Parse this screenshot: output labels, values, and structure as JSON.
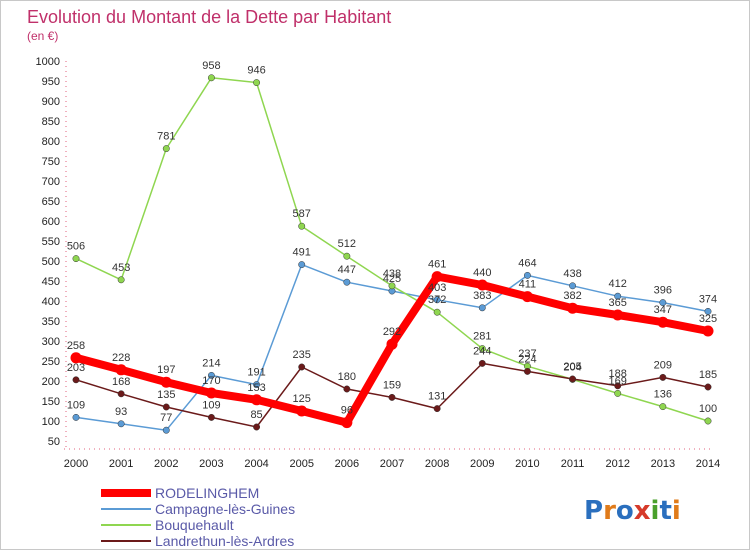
{
  "header": {
    "title": "Evolution du Montant de la Dette par Habitant",
    "subtitle": "(en €)"
  },
  "logo": {
    "text": "Proxiti",
    "letters": [
      "P",
      "r",
      "o",
      "x",
      "i",
      "t",
      "i"
    ],
    "colors": [
      "#2a6fbe",
      "#e07b1a",
      "#2a6fbe",
      "#d63a2a",
      "#4aa02c",
      "#2a6fbe",
      "#e07b1a"
    ]
  },
  "chart_data": {
    "type": "line",
    "x": [
      2000,
      2001,
      2002,
      2003,
      2004,
      2005,
      2006,
      2007,
      2008,
      2009,
      2010,
      2011,
      2012,
      2013,
      2014
    ],
    "ylim": [
      50,
      1000
    ],
    "yticks": [
      50,
      100,
      150,
      200,
      250,
      300,
      350,
      400,
      450,
      500,
      550,
      600,
      650,
      700,
      750,
      800,
      850,
      900,
      950,
      1000
    ],
    "grid": false,
    "legend": "bottom-left",
    "series": [
      {
        "name": "RODELINGHEM",
        "color": "#ff0000",
        "width": 8,
        "values": [
          258,
          228,
          197,
          170,
          153,
          125,
          96,
          292,
          461,
          440,
          411,
          382,
          365,
          347,
          325
        ]
      },
      {
        "name": "Campagne-lès-Guines",
        "color": "#5b9bd5",
        "width": 1.5,
        "values": [
          109,
          93,
          77,
          214,
          191,
          491,
          447,
          425,
          403,
          383,
          464,
          438,
          412,
          396,
          374
        ]
      },
      {
        "name": "Bouquehault",
        "color": "#8fd650",
        "width": 1.5,
        "values": [
          506,
          453,
          781,
          958,
          946,
          587,
          512,
          438,
          372,
          281,
          237,
          204,
          169,
          136,
          100
        ]
      },
      {
        "name": "Landrethun-lès-Ardres",
        "color": "#6b1a1a",
        "width": 1.5,
        "values": [
          203,
          168,
          135,
          109,
          85,
          235,
          180,
          159,
          131,
          244,
          224,
          205,
          188,
          209,
          185
        ]
      }
    ]
  }
}
